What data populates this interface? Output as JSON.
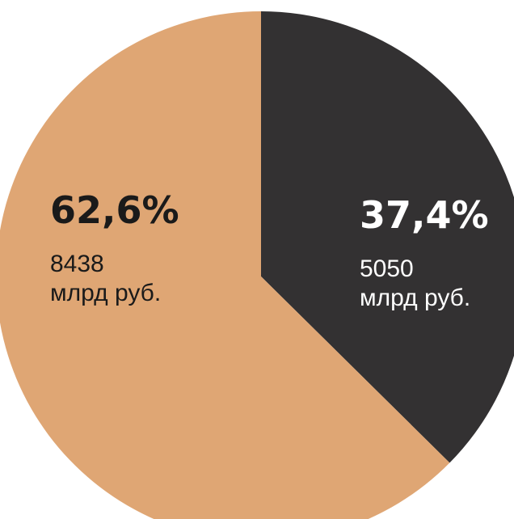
{
  "chart_data": {
    "type": "pie",
    "slices": [
      {
        "value": 37.4,
        "percent_label": "37,4%",
        "amount": 5050,
        "value_line1": "5050",
        "value_line2": "млрд руб.",
        "color": "#333132",
        "label_color": "#ffffff"
      },
      {
        "value": 62.6,
        "percent_label": "62,6%",
        "amount": 8438,
        "value_line1": "8438",
        "value_line2": "млрд руб.",
        "color": "#dfa674",
        "label_color": "#1a1a1a"
      }
    ],
    "legend": "none",
    "start_angle": "12 o'clock",
    "direction": "clockwise"
  }
}
